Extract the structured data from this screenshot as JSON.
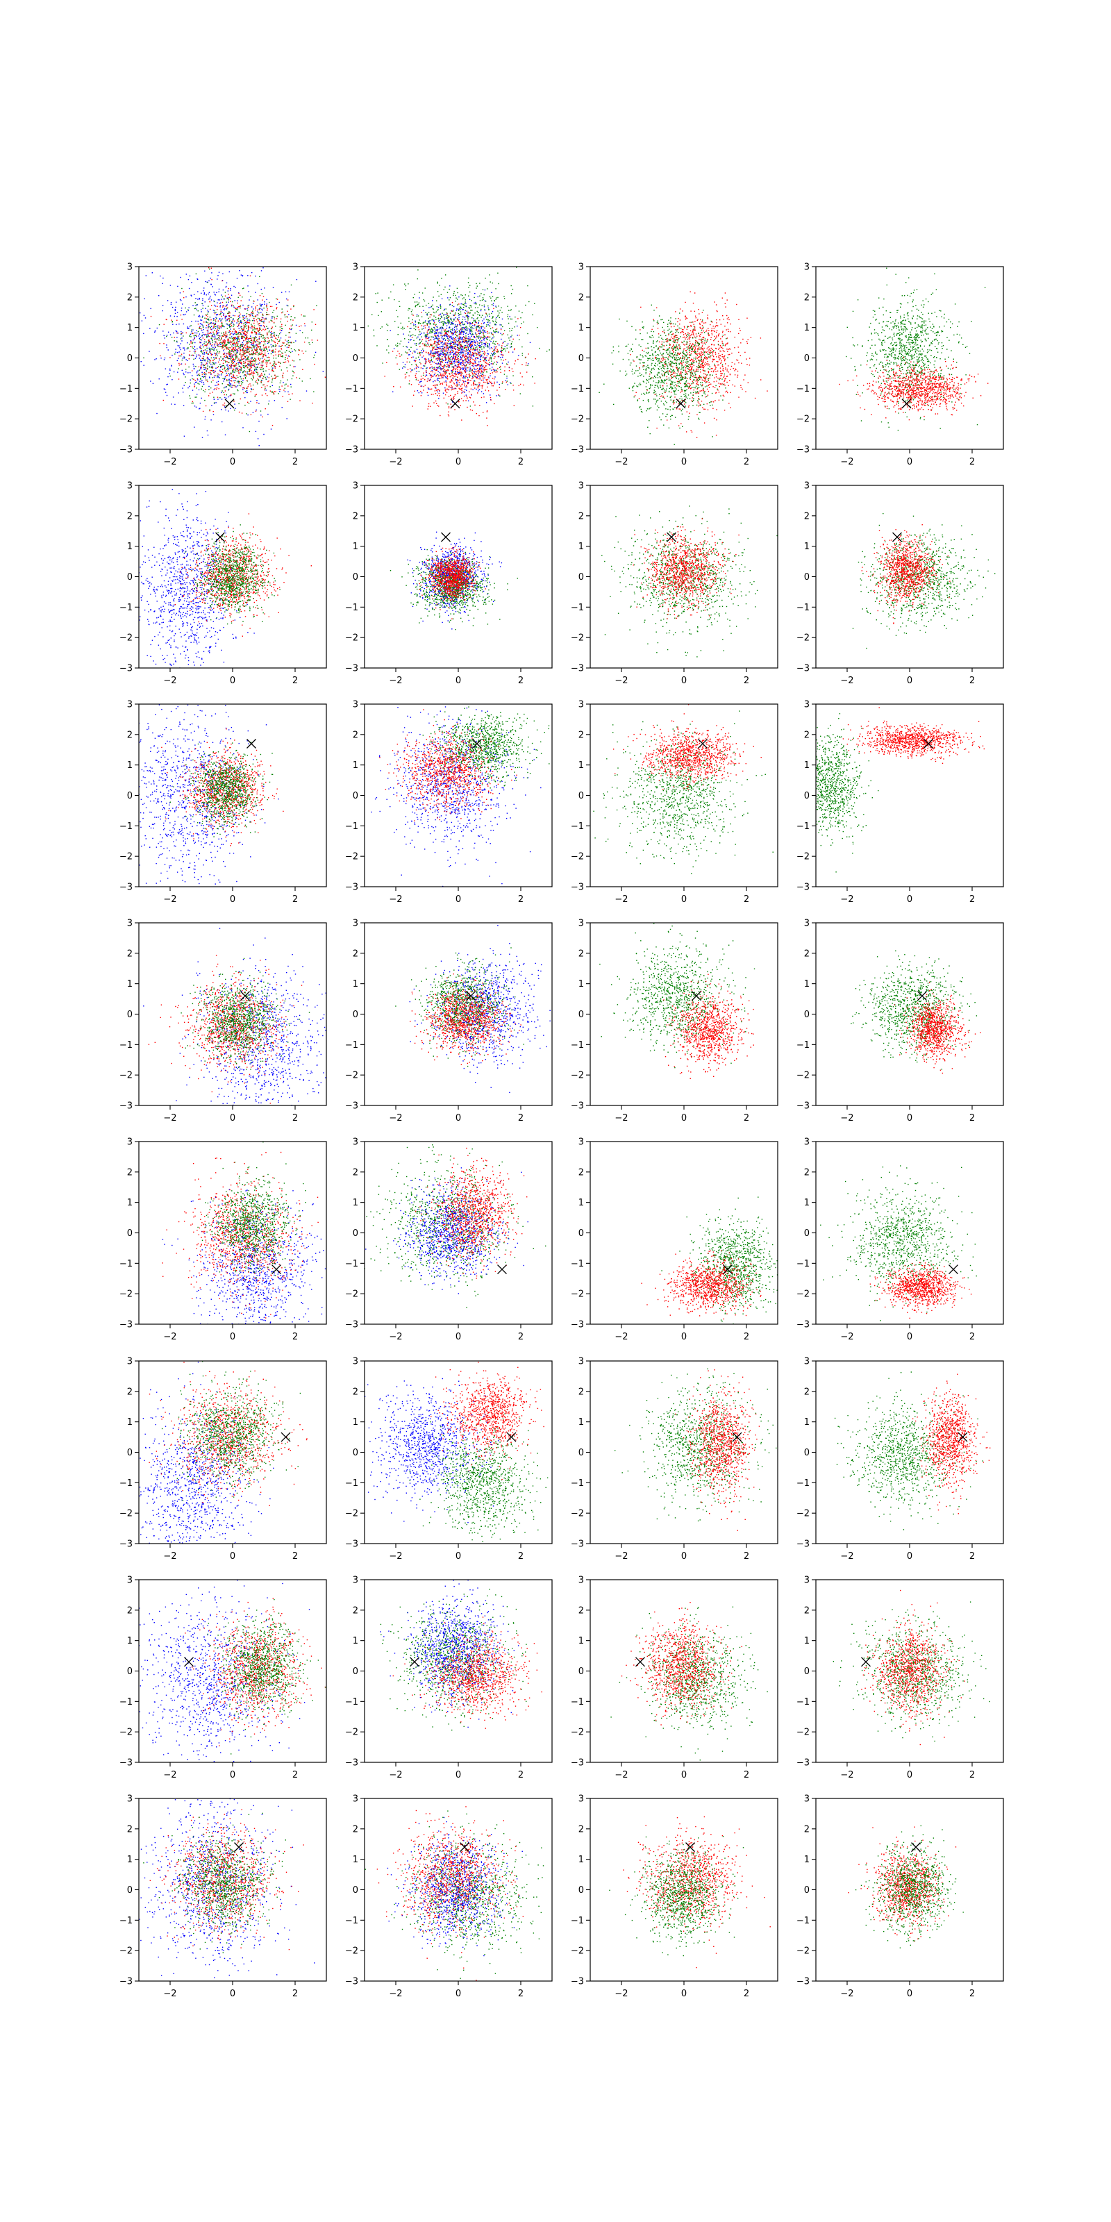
{
  "figure": {
    "rows": 8,
    "cols": 4,
    "background": "#ffffff"
  },
  "series_colors": {
    "blue": "#0000ff",
    "green": "#008000",
    "red": "#ff0000",
    "marker": "#000000"
  },
  "chart_data": {
    "type": "scatter",
    "grid": false,
    "legend": "none",
    "xlim": [
      -3,
      3
    ],
    "ylim": [
      -3,
      3
    ],
    "x_ticks": [
      "−2",
      "0",
      "2"
    ],
    "y_ticks": [
      "−3",
      "−2",
      "−1",
      "0",
      "1",
      "2",
      "3"
    ],
    "marker_symbol": "x",
    "points_per_cloud": 900,
    "rows": [
      {
        "marker": [
          -0.1,
          -1.5
        ],
        "panels": [
          [
            {
              "color": "blue",
              "cx": -0.4,
              "cy": 0.6,
              "sx": 1.1,
              "sy": 1.3
            },
            {
              "color": "green",
              "cx": 0.3,
              "cy": 0.3,
              "sx": 0.9,
              "sy": 0.8
            },
            {
              "color": "red",
              "cx": 0.3,
              "cy": 0.3,
              "sx": 0.9,
              "sy": 0.8
            }
          ],
          [
            {
              "color": "green",
              "cx": 0.0,
              "cy": 0.9,
              "sx": 1.1,
              "sy": 0.8
            },
            {
              "color": "blue",
              "cx": 0.0,
              "cy": 0.3,
              "sx": 0.7,
              "sy": 0.7
            },
            {
              "color": "red",
              "cx": 0.0,
              "cy": -0.2,
              "sx": 0.8,
              "sy": 0.7
            }
          ],
          [
            {
              "color": "red",
              "cx": 0.5,
              "cy": 0.0,
              "sx": 0.7,
              "sy": 0.8
            },
            {
              "color": "green",
              "cx": -0.4,
              "cy": -0.4,
              "sx": 0.7,
              "sy": 0.8
            }
          ],
          [
            {
              "color": "green",
              "cx": 0.0,
              "cy": 0.2,
              "sx": 0.7,
              "sy": 0.8
            },
            {
              "color": "red",
              "cx": 0.3,
              "cy": -1.0,
              "sx": 0.7,
              "sy": 0.35
            }
          ]
        ]
      },
      {
        "marker": [
          -0.4,
          1.3
        ],
        "panels": [
          [
            {
              "color": "blue",
              "cx": -1.5,
              "cy": -0.4,
              "sx": 0.7,
              "sy": 1.3
            },
            {
              "color": "red",
              "cx": 0.0,
              "cy": 0.0,
              "sx": 0.6,
              "sy": 0.6
            },
            {
              "color": "green",
              "cx": 0.0,
              "cy": 0.0,
              "sx": 0.5,
              "sy": 0.55
            }
          ],
          [
            {
              "color": "blue",
              "cx": -0.2,
              "cy": 0.0,
              "sx": 0.5,
              "sy": 0.5
            },
            {
              "color": "green",
              "cx": -0.2,
              "cy": -0.3,
              "sx": 0.55,
              "sy": 0.45
            },
            {
              "color": "red",
              "cx": -0.2,
              "cy": 0.0,
              "sx": 0.35,
              "sy": 0.35
            }
          ],
          [
            {
              "color": "green",
              "cx": 0.0,
              "cy": -0.1,
              "sx": 0.9,
              "sy": 0.8
            },
            {
              "color": "red",
              "cx": 0.0,
              "cy": 0.2,
              "sx": 0.55,
              "sy": 0.55
            }
          ],
          [
            {
              "color": "green",
              "cx": 0.3,
              "cy": -0.1,
              "sx": 0.8,
              "sy": 0.7
            },
            {
              "color": "red",
              "cx": -0.1,
              "cy": 0.2,
              "sx": 0.45,
              "sy": 0.5
            }
          ]
        ]
      },
      {
        "marker": [
          0.6,
          1.7
        ],
        "panels": [
          [
            {
              "color": "blue",
              "cx": -1.4,
              "cy": 0.0,
              "sx": 0.9,
              "sy": 1.4
            },
            {
              "color": "red",
              "cx": -0.2,
              "cy": 0.2,
              "sx": 0.6,
              "sy": 0.6
            },
            {
              "color": "green",
              "cx": -0.2,
              "cy": 0.2,
              "sx": 0.5,
              "sy": 0.55
            }
          ],
          [
            {
              "color": "blue",
              "cx": -0.2,
              "cy": 0.4,
              "sx": 0.9,
              "sy": 1.0
            },
            {
              "color": "green",
              "cx": 0.8,
              "cy": 1.6,
              "sx": 0.7,
              "sy": 0.5
            },
            {
              "color": "red",
              "cx": -0.3,
              "cy": 0.8,
              "sx": 0.7,
              "sy": 0.6
            }
          ],
          [
            {
              "color": "green",
              "cx": -0.2,
              "cy": 0.0,
              "sx": 0.9,
              "sy": 0.9
            },
            {
              "color": "red",
              "cx": 0.2,
              "cy": 1.3,
              "sx": 0.7,
              "sy": 0.4
            }
          ],
          [
            {
              "color": "green",
              "cx": -2.6,
              "cy": 0.3,
              "sx": 0.5,
              "sy": 0.8
            },
            {
              "color": "red",
              "cx": 0.1,
              "cy": 1.8,
              "sx": 0.75,
              "sy": 0.25
            }
          ]
        ]
      },
      {
        "marker": [
          0.4,
          0.6
        ],
        "panels": [
          [
            {
              "color": "blue",
              "cx": 1.0,
              "cy": -0.9,
              "sx": 1.0,
              "sy": 1.2
            },
            {
              "color": "red",
              "cx": 0.0,
              "cy": -0.4,
              "sx": 0.7,
              "sy": 0.7
            },
            {
              "color": "green",
              "cx": 0.2,
              "cy": -0.2,
              "sx": 0.6,
              "sy": 0.6
            }
          ],
          [
            {
              "color": "blue",
              "cx": 0.9,
              "cy": 0.1,
              "sx": 0.8,
              "sy": 0.8
            },
            {
              "color": "green",
              "cx": 0.2,
              "cy": 0.3,
              "sx": 0.6,
              "sy": 0.6
            },
            {
              "color": "red",
              "cx": 0.2,
              "cy": -0.2,
              "sx": 0.6,
              "sy": 0.5
            }
          ],
          [
            {
              "color": "green",
              "cx": -0.2,
              "cy": 0.6,
              "sx": 0.8,
              "sy": 0.8
            },
            {
              "color": "red",
              "cx": 0.8,
              "cy": -0.5,
              "sx": 0.5,
              "sy": 0.55
            }
          ],
          [
            {
              "color": "green",
              "cx": 0.1,
              "cy": 0.2,
              "sx": 0.7,
              "sy": 0.7
            },
            {
              "color": "red",
              "cx": 0.8,
              "cy": -0.5,
              "sx": 0.4,
              "sy": 0.45
            }
          ]
        ]
      },
      {
        "marker": [
          1.4,
          -1.2
        ],
        "panels": [
          [
            {
              "color": "blue",
              "cx": 0.8,
              "cy": -1.2,
              "sx": 0.9,
              "sy": 1.0
            },
            {
              "color": "red",
              "cx": 0.3,
              "cy": -0.1,
              "sx": 0.8,
              "sy": 0.9
            },
            {
              "color": "green",
              "cx": 0.6,
              "cy": 0.3,
              "sx": 0.6,
              "sy": 0.7
            }
          ],
          [
            {
              "color": "green",
              "cx": -0.4,
              "cy": 0.3,
              "sx": 0.9,
              "sy": 0.9
            },
            {
              "color": "blue",
              "cx": -0.2,
              "cy": 0.0,
              "sx": 0.7,
              "sy": 0.7
            },
            {
              "color": "red",
              "cx": 0.5,
              "cy": 0.6,
              "sx": 0.6,
              "sy": 0.7
            }
          ],
          [
            {
              "color": "green",
              "cx": 1.7,
              "cy": -1.0,
              "sx": 0.6,
              "sy": 0.7
            },
            {
              "color": "red",
              "cx": 0.8,
              "cy": -1.7,
              "sx": 0.6,
              "sy": 0.4
            }
          ],
          [
            {
              "color": "green",
              "cx": -0.2,
              "cy": -0.3,
              "sx": 0.8,
              "sy": 0.8
            },
            {
              "color": "red",
              "cx": 0.4,
              "cy": -1.8,
              "sx": 0.55,
              "sy": 0.3
            }
          ]
        ]
      },
      {
        "marker": [
          1.7,
          0.5
        ],
        "panels": [
          [
            {
              "color": "blue",
              "cx": -1.3,
              "cy": -1.1,
              "sx": 0.9,
              "sy": 1.2
            },
            {
              "color": "red",
              "cx": -0.1,
              "cy": 0.5,
              "sx": 0.8,
              "sy": 0.8
            },
            {
              "color": "green",
              "cx": -0.1,
              "cy": 0.6,
              "sx": 0.7,
              "sy": 0.7
            }
          ],
          [
            {
              "color": "blue",
              "cx": -1.0,
              "cy": 0.2,
              "sx": 0.8,
              "sy": 0.8
            },
            {
              "color": "green",
              "cx": 0.8,
              "cy": -1.0,
              "sx": 0.7,
              "sy": 0.8
            },
            {
              "color": "red",
              "cx": 1.0,
              "cy": 1.3,
              "sx": 0.6,
              "sy": 0.6
            }
          ],
          [
            {
              "color": "green",
              "cx": 0.4,
              "cy": 0.2,
              "sx": 0.8,
              "sy": 0.9
            },
            {
              "color": "red",
              "cx": 1.2,
              "cy": 0.3,
              "sx": 0.45,
              "sy": 0.8
            }
          ],
          [
            {
              "color": "green",
              "cx": -0.2,
              "cy": -0.1,
              "sx": 0.8,
              "sy": 0.8
            },
            {
              "color": "red",
              "cx": 1.3,
              "cy": 0.4,
              "sx": 0.4,
              "sy": 0.7
            }
          ]
        ]
      },
      {
        "marker": [
          -1.4,
          0.3
        ],
        "panels": [
          [
            {
              "color": "blue",
              "cx": -0.8,
              "cy": -0.3,
              "sx": 1.1,
              "sy": 1.2
            },
            {
              "color": "red",
              "cx": 0.8,
              "cy": 0.0,
              "sx": 0.7,
              "sy": 0.8
            },
            {
              "color": "green",
              "cx": 0.9,
              "cy": 0.1,
              "sx": 0.6,
              "sy": 0.7
            }
          ],
          [
            {
              "color": "green",
              "cx": -0.1,
              "cy": 0.4,
              "sx": 0.8,
              "sy": 0.8
            },
            {
              "color": "blue",
              "cx": -0.1,
              "cy": 0.7,
              "sx": 0.7,
              "sy": 0.8
            },
            {
              "color": "red",
              "cx": 0.6,
              "cy": -0.2,
              "sx": 0.7,
              "sy": 0.6
            }
          ],
          [
            {
              "color": "green",
              "cx": 0.4,
              "cy": -0.2,
              "sx": 0.8,
              "sy": 0.8
            },
            {
              "color": "red",
              "cx": -0.1,
              "cy": 0.2,
              "sx": 0.6,
              "sy": 0.7
            }
          ],
          [
            {
              "color": "green",
              "cx": 0.1,
              "cy": 0.0,
              "sx": 0.8,
              "sy": 0.8
            },
            {
              "color": "red",
              "cx": 0.0,
              "cy": 0.0,
              "sx": 0.55,
              "sy": 0.7
            }
          ]
        ]
      },
      {
        "marker": [
          0.2,
          1.4
        ],
        "panels": [
          [
            {
              "color": "blue",
              "cx": -0.7,
              "cy": 0.2,
              "sx": 1.0,
              "sy": 1.4
            },
            {
              "color": "red",
              "cx": -0.3,
              "cy": 0.3,
              "sx": 0.8,
              "sy": 0.8
            },
            {
              "color": "green",
              "cx": -0.3,
              "cy": 0.2,
              "sx": 0.7,
              "sy": 0.7
            }
          ],
          [
            {
              "color": "green",
              "cx": 0.3,
              "cy": -0.2,
              "sx": 0.9,
              "sy": 0.9
            },
            {
              "color": "blue",
              "cx": -0.1,
              "cy": 0.0,
              "sx": 0.7,
              "sy": 0.8
            },
            {
              "color": "red",
              "cx": -0.2,
              "cy": 0.4,
              "sx": 0.8,
              "sy": 0.8
            }
          ],
          [
            {
              "color": "red",
              "cx": 0.2,
              "cy": 0.3,
              "sx": 0.7,
              "sy": 0.7
            },
            {
              "color": "green",
              "cx": 0.0,
              "cy": -0.2,
              "sx": 0.6,
              "sy": 0.7
            }
          ],
          [
            {
              "color": "red",
              "cx": -0.1,
              "cy": 0.1,
              "sx": 0.5,
              "sy": 0.6
            },
            {
              "color": "green",
              "cx": 0.1,
              "cy": 0.0,
              "sx": 0.55,
              "sy": 0.65
            }
          ]
        ]
      }
    ]
  }
}
